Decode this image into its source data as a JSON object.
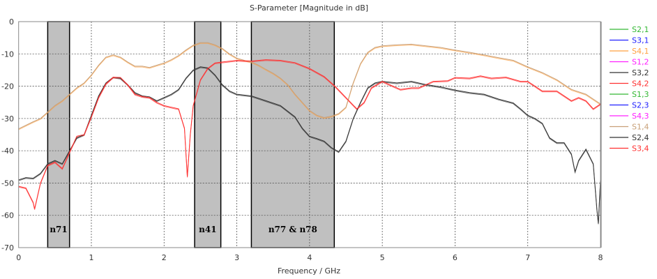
{
  "chart_data": {
    "type": "line",
    "title": "S-Parameter [Magnitude in dB]",
    "xlabel": "Frequency / GHz",
    "ylabel": "",
    "xlim": [
      0,
      8
    ],
    "ylim": [
      -70,
      0
    ],
    "xticks": [
      0,
      1,
      2,
      3,
      4,
      5,
      6,
      7,
      8
    ],
    "yticks": [
      0,
      -10,
      -20,
      -30,
      -40,
      -50,
      -60,
      -70
    ],
    "grid": true,
    "legend_position": "right",
    "bands": [
      {
        "label": "n71",
        "x": [
          0.4,
          0.7
        ]
      },
      {
        "label": "n41",
        "x": [
          2.42,
          2.78
        ]
      },
      {
        "label": "n77 &  n78",
        "x": [
          3.2,
          4.34
        ]
      }
    ],
    "series": [
      {
        "name": "S2,1",
        "color": "#33b833",
        "x": [],
        "y": []
      },
      {
        "name": "S3,1",
        "color": "#2020ff",
        "x": [],
        "y": []
      },
      {
        "name": "S4,1",
        "color": "#ffa040",
        "overlaps": "S1,4"
      },
      {
        "name": "S1,2",
        "color": "#ff20ff",
        "x": [],
        "y": []
      },
      {
        "name": "S3,2",
        "color": "#333333",
        "overlaps": "S2,4"
      },
      {
        "name": "S4,2",
        "color": "#ff3030",
        "overlaps": "S3,4"
      },
      {
        "name": "S1,3",
        "color": "#33b833",
        "x": [],
        "y": []
      },
      {
        "name": "S2,3",
        "color": "#2020ff",
        "x": [],
        "y": []
      },
      {
        "name": "S4,3",
        "color": "#ff20ff",
        "x": [],
        "y": []
      },
      {
        "name": "S1,4",
        "color": "#c8a078",
        "x": [
          0,
          0.2,
          0.3,
          0.4,
          0.5,
          0.6,
          0.7,
          0.8,
          0.9,
          1.0,
          1.1,
          1.2,
          1.3,
          1.4,
          1.5,
          1.6,
          1.7,
          1.8,
          1.9,
          2.0,
          2.1,
          2.2,
          2.3,
          2.4,
          2.5,
          2.6,
          2.7,
          2.8,
          2.9,
          3.0,
          3.1,
          3.2,
          3.3,
          3.4,
          3.5,
          3.6,
          3.7,
          3.8,
          3.9,
          4.0,
          4.1,
          4.2,
          4.3,
          4.4,
          4.5,
          4.6,
          4.7,
          4.8,
          4.9,
          5.0,
          5.2,
          5.4,
          5.6,
          5.8,
          6.0,
          6.2,
          6.4,
          6.6,
          6.8,
          7.0,
          7.2,
          7.4,
          7.6,
          7.8,
          8.0
        ],
        "y": [
          -33.2,
          -31,
          -30,
          -28,
          -26,
          -24.5,
          -22.5,
          -20.5,
          -19,
          -16.5,
          -13.5,
          -11,
          -10.3,
          -11,
          -12.5,
          -13.8,
          -13.8,
          -14.2,
          -13.5,
          -12.8,
          -11.8,
          -10.5,
          -8.8,
          -7.3,
          -6.5,
          -6.5,
          -7.2,
          -8.3,
          -10,
          -11.3,
          -12,
          -12.5,
          -13.5,
          -14.8,
          -16,
          -17.5,
          -19.5,
          -22.5,
          -25,
          -27.5,
          -29,
          -29.7,
          -29.3,
          -28.5,
          -26.5,
          -19,
          -13,
          -9.5,
          -8,
          -7.5,
          -7.2,
          -7,
          -7.5,
          -8,
          -8.8,
          -9.5,
          -10.3,
          -11.2,
          -12,
          -14,
          -15.8,
          -18,
          -21,
          -22.5,
          -25.5
        ]
      },
      {
        "name": "S2,4",
        "color": "#333333",
        "x": [
          0,
          0.1,
          0.2,
          0.3,
          0.4,
          0.5,
          0.6,
          0.7,
          0.8,
          0.9,
          1.0,
          1.1,
          1.2,
          1.3,
          1.4,
          1.5,
          1.6,
          1.7,
          1.8,
          1.9,
          2.0,
          2.1,
          2.2,
          2.3,
          2.4,
          2.5,
          2.6,
          2.7,
          2.8,
          2.9,
          3.0,
          3.2,
          3.4,
          3.6,
          3.8,
          3.9,
          4.0,
          4.1,
          4.2,
          4.3,
          4.4,
          4.5,
          4.6,
          4.7,
          4.8,
          4.9,
          5.0,
          5.2,
          5.4,
          5.6,
          5.8,
          6.0,
          6.2,
          6.4,
          6.6,
          6.8,
          6.9,
          7.0,
          7.1,
          7.2,
          7.3,
          7.4,
          7.5,
          7.6,
          7.65,
          7.7,
          7.8,
          7.9,
          7.95,
          7.97,
          8.0
        ],
        "y": [
          -49,
          -48.3,
          -48.5,
          -47,
          -44,
          -43,
          -44,
          -40,
          -36,
          -35,
          -29,
          -23,
          -19,
          -17.2,
          -17.5,
          -19.5,
          -22,
          -23,
          -23.3,
          -24.5,
          -23.5,
          -22.5,
          -21,
          -17.5,
          -15,
          -14,
          -14.3,
          -16.5,
          -19.5,
          -21.5,
          -22.5,
          -23,
          -24.5,
          -26,
          -29.5,
          -33,
          -35.5,
          -36.2,
          -37,
          -39,
          -40.3,
          -37,
          -30,
          -25,
          -20.5,
          -19,
          -18.5,
          -19,
          -18.5,
          -19.5,
          -20.2,
          -21.2,
          -22,
          -22.5,
          -24,
          -25.2,
          -27,
          -29,
          -30,
          -31.5,
          -36,
          -37.5,
          -37.5,
          -41,
          -46.5,
          -43,
          -39.5,
          -44,
          -58,
          -62.5,
          -49
        ]
      },
      {
        "name": "S3,4",
        "color": "#ff3030",
        "x": [
          0,
          0.1,
          0.2,
          0.22,
          0.3,
          0.4,
          0.5,
          0.6,
          0.7,
          0.8,
          0.9,
          1.0,
          1.1,
          1.2,
          1.3,
          1.4,
          1.5,
          1.6,
          1.7,
          1.8,
          1.9,
          2.0,
          2.1,
          2.2,
          2.28,
          2.32,
          2.36,
          2.4,
          2.5,
          2.6,
          2.7,
          2.8,
          3.0,
          3.2,
          3.4,
          3.6,
          3.8,
          4.0,
          4.2,
          4.35,
          4.5,
          4.65,
          4.75,
          4.85,
          5.0,
          5.1,
          5.25,
          5.4,
          5.5,
          5.7,
          5.9,
          6.0,
          6.2,
          6.35,
          6.5,
          6.7,
          6.9,
          7.0,
          7.2,
          7.4,
          7.6,
          7.7,
          7.8,
          7.9,
          8.0
        ],
        "y": [
          -51,
          -51.5,
          -56,
          -58,
          -50,
          -44.5,
          -43.5,
          -45.5,
          -40.5,
          -35.5,
          -35,
          -29.5,
          -23.5,
          -19.3,
          -17.2,
          -17.3,
          -19.5,
          -22.5,
          -23.2,
          -23.5,
          -25,
          -26,
          -26.5,
          -27,
          -33,
          -48,
          -35,
          -26,
          -18,
          -14.5,
          -12.8,
          -12.5,
          -12,
          -12.2,
          -11.8,
          -12,
          -12.7,
          -14.5,
          -17,
          -20,
          -23.5,
          -27,
          -25,
          -20.5,
          -18.5,
          -19.5,
          -21,
          -20.5,
          -20.5,
          -18.5,
          -18.3,
          -17.3,
          -17.5,
          -16.8,
          -17.5,
          -17.2,
          -18.5,
          -18.5,
          -21.5,
          -21.5,
          -24.5,
          -23.5,
          -24.5,
          -27,
          -25.5
        ]
      }
    ]
  }
}
